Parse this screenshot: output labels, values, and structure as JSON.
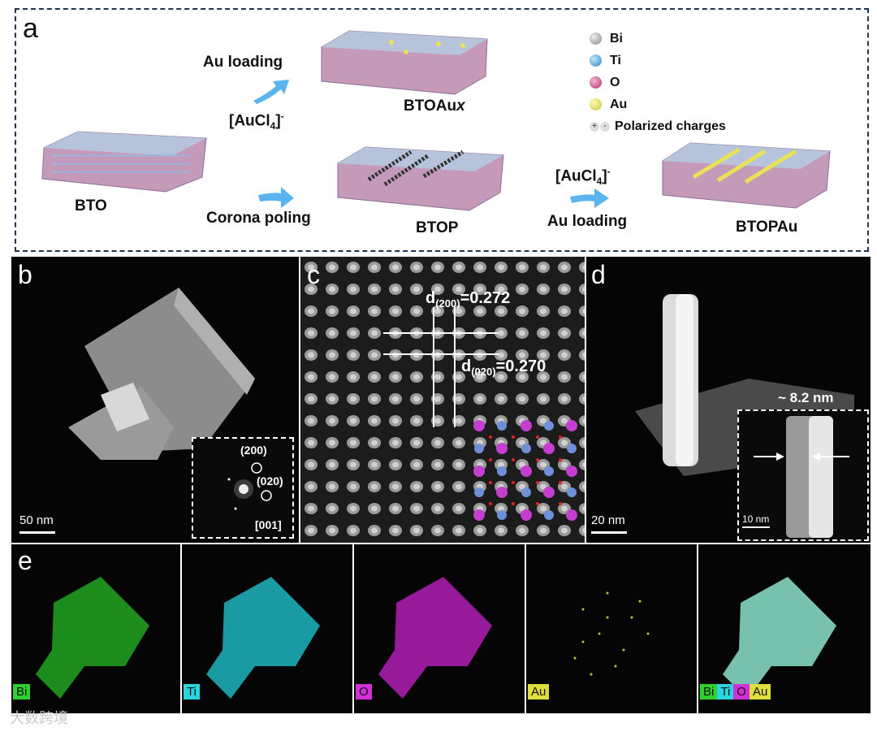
{
  "panel_a": {
    "letter": "a",
    "au_loading_top": "Au loading",
    "aucl4_top_base": "[AuCl",
    "aucl4_top_sub": "4",
    "aucl4_top_close": "]",
    "aucl4_top_sup": "-",
    "btoaux_base": "BTOAu",
    "btoaux_italic": "x",
    "bto": "BTO",
    "corona_poling": "Corona poling",
    "btop": "BTOP",
    "aucl4_right_base": "[AuCl",
    "aucl4_right_sub": "4",
    "aucl4_right_close": "]",
    "aucl4_right_sup": "-",
    "au_loading_right": "Au loading",
    "btopau": "BTOPAu",
    "legend": {
      "bi": "Bi",
      "ti": "Ti",
      "o": "O",
      "au": "Au",
      "charges": "Polarized charges",
      "charge_plus": "+",
      "charge_minus": "-"
    },
    "colors": {
      "bi": "#a8a8a8",
      "ti": "#49a9dd",
      "o": "#c8417f",
      "au": "#e8e25a",
      "arrow": "#5ab4ef",
      "frame": "#1f3350"
    }
  },
  "panel_b": {
    "letter": "b",
    "scale_bar": "50 nm",
    "spot_200": "(200)",
    "spot_020": "(020)",
    "zone_axis": "[001]"
  },
  "panel_c": {
    "letter": "c",
    "d200_base": "d",
    "d200_sub": "(200)",
    "d200_value": "=0.272",
    "d020_base": "d",
    "d020_sub": "(020)",
    "d020_value": "=0.270"
  },
  "panel_d": {
    "letter": "d",
    "scale_bar": "20 nm",
    "inset_width": "~ 8.2 nm",
    "inset_scale_bar": "10 nm"
  },
  "panel_e": {
    "letter": "e",
    "maps": [
      {
        "label": "Bi",
        "color": "#2fd12f"
      },
      {
        "label": "Ti",
        "color": "#29d6e0"
      },
      {
        "label": "O",
        "color": "#d22fd6"
      },
      {
        "label": "Au",
        "color": "#e0de3a"
      }
    ],
    "overlay_labels": [
      "Bi",
      "Ti",
      "O",
      "Au"
    ]
  },
  "watermark": "大数跨境"
}
